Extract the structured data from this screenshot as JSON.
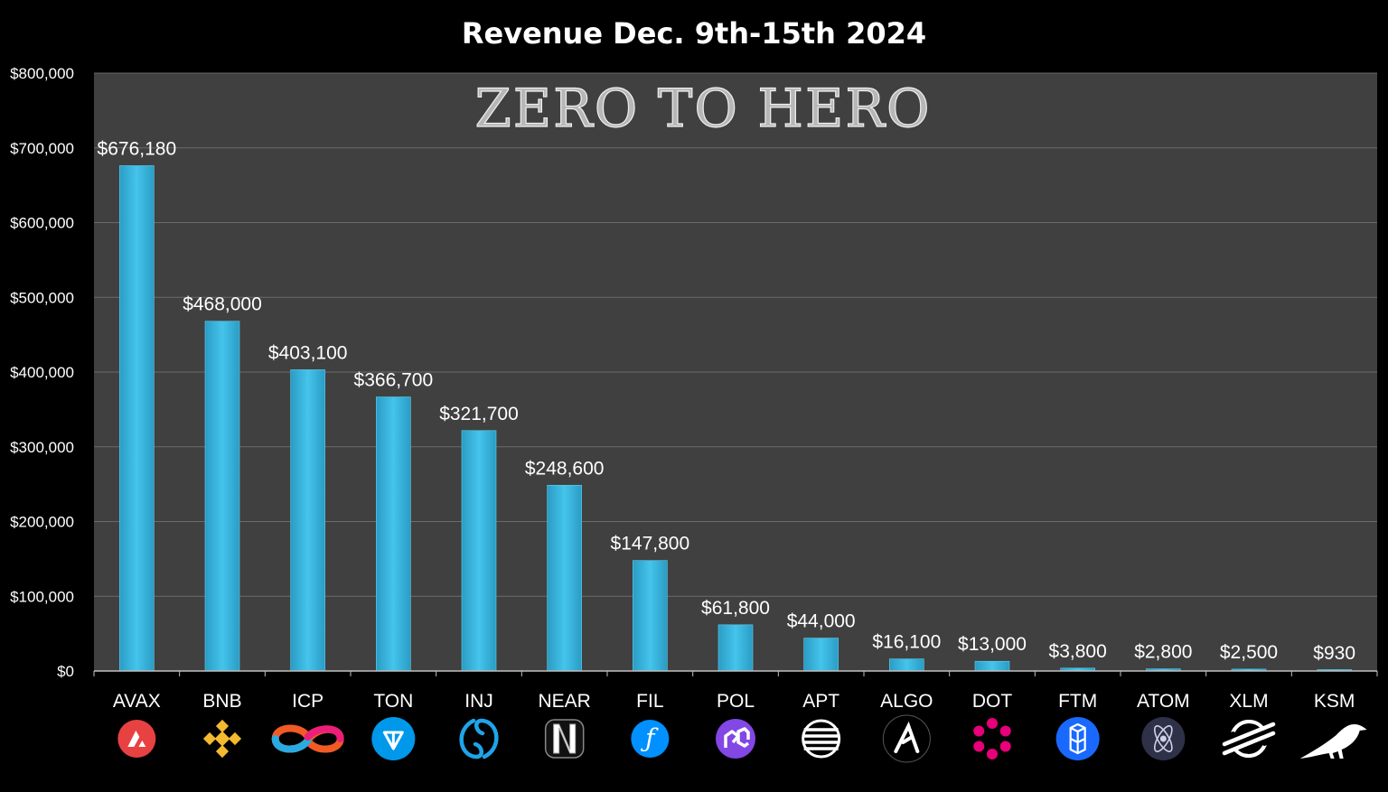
{
  "chart_data": {
    "type": "bar",
    "title": "Revenue Dec. 9th-15th 2024",
    "watermark": "ZERO TO HERO",
    "categories": [
      "AVAX",
      "BNB",
      "ICP",
      "TON",
      "INJ",
      "NEAR",
      "FIL",
      "POL",
      "APT",
      "ALGO",
      "DOT",
      "FTM",
      "ATOM",
      "XLM",
      "KSM"
    ],
    "values": [
      676180,
      468000,
      403100,
      366700,
      321700,
      248600,
      147800,
      61800,
      44000,
      16100,
      13000,
      3800,
      2800,
      2500,
      930
    ],
    "value_labels": [
      "$676,180",
      "$468,000",
      "$403,100",
      "$366,700",
      "$321,700",
      "$248,600",
      "$147,800",
      "$61,800",
      "$44,000",
      "$16,100",
      "$13,000",
      "$3,800",
      "$2,800",
      "$2,500",
      "$930"
    ],
    "ylim": [
      0,
      800000
    ],
    "yticks": [
      0,
      100000,
      200000,
      300000,
      400000,
      500000,
      600000,
      700000,
      800000
    ],
    "ytick_labels": [
      "$0",
      "$100,000",
      "$200,000",
      "$300,000",
      "$400,000",
      "$500,000",
      "$600,000",
      "$700,000",
      "$800,000"
    ],
    "grid": true,
    "icons": [
      "avax-icon",
      "bnb-icon",
      "icp-icon",
      "ton-icon",
      "inj-icon",
      "near-icon",
      "fil-icon",
      "pol-icon",
      "apt-icon",
      "algo-icon",
      "dot-icon",
      "ftm-icon",
      "atom-icon",
      "xlm-icon",
      "ksm-icon"
    ],
    "colors": {
      "background": "#000000",
      "plot_background": "#404040",
      "bar": "#3ab8e0",
      "gridline": "#6a6a6a",
      "text": "#ffffff"
    }
  }
}
